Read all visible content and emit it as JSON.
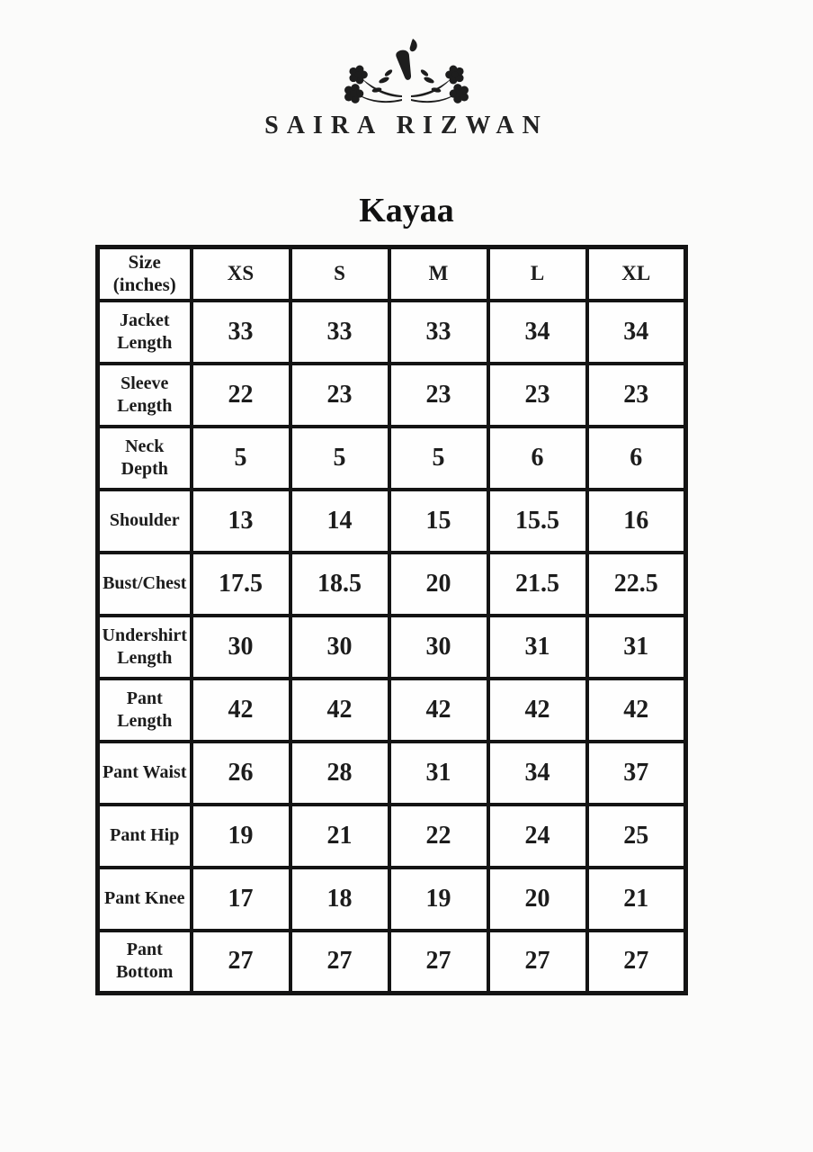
{
  "brand": {
    "name": "SAIRA RIZWAN",
    "logo_emblem": "calligraphy-mark-with-floral-sprays"
  },
  "product": {
    "title": "Kayaa"
  },
  "size_chart": {
    "corner_header_lines": [
      "Size",
      "(inches)"
    ],
    "size_columns": [
      "XS",
      "S",
      "M",
      "L",
      "XL"
    ],
    "rows": [
      {
        "label": "Jacket Length",
        "values": [
          "33",
          "33",
          "33",
          "34",
          "34"
        ]
      },
      {
        "label": "Sleeve Length",
        "values": [
          "22",
          "23",
          "23",
          "23",
          "23"
        ]
      },
      {
        "label": "Neck Depth",
        "values": [
          "5",
          "5",
          "5",
          "6",
          "6"
        ]
      },
      {
        "label": "Shoulder",
        "values": [
          "13",
          "14",
          "15",
          "15.5",
          "16"
        ]
      },
      {
        "label": "Bust/Chest",
        "values": [
          "17.5",
          "18.5",
          "20",
          "21.5",
          "22.5"
        ]
      },
      {
        "label": "Undershirt Length",
        "values": [
          "30",
          "30",
          "30",
          "31",
          "31"
        ]
      },
      {
        "label": "Pant Length",
        "values": [
          "42",
          "42",
          "42",
          "42",
          "42"
        ]
      },
      {
        "label": "Pant Waist",
        "values": [
          "26",
          "28",
          "31",
          "34",
          "37"
        ]
      },
      {
        "label": "Pant Hip",
        "values": [
          "19",
          "21",
          "22",
          "24",
          "25"
        ]
      },
      {
        "label": "Pant Knee",
        "values": [
          "17",
          "18",
          "19",
          "20",
          "21"
        ]
      },
      {
        "label": "Pant Bottom",
        "values": [
          "27",
          "27",
          "27",
          "27",
          "27"
        ]
      }
    ]
  },
  "colors": {
    "ink": "#1c1c1c",
    "table_border": "#141414",
    "cell_background": "#fefefe",
    "page_background": "#fbfbfa"
  }
}
